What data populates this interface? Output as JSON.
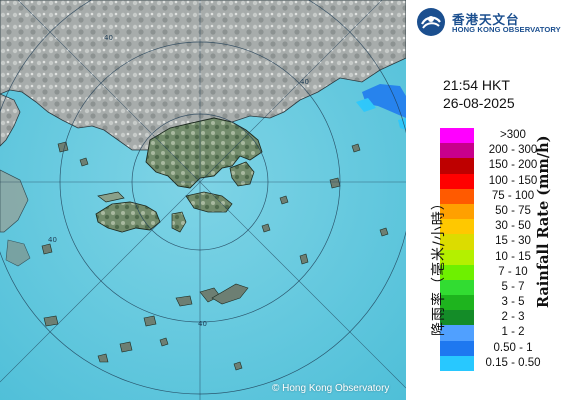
{
  "logo": {
    "name_chinese": "香港天文台",
    "name_english": "HONG KONG OBSERVATORY",
    "emblem_icon": "hko-emblem-icon"
  },
  "timestamp": {
    "time": "21:54 HKT",
    "date": "26-08-2025"
  },
  "copyright": "© Hong Kong Observatory",
  "range_ring_labels": [
    "40",
    "40",
    "40",
    "40"
  ],
  "legend": {
    "unit_english": "Rainfall Rate (mm/h)",
    "unit_chinese": "降雨率（毫米/小時）",
    "items": [
      {
        "label": ">300",
        "color": "#ff00ff"
      },
      {
        "label": "200 - 300",
        "color": "#c8008c"
      },
      {
        "label": "150 - 200",
        "color": "#be0000"
      },
      {
        "label": "100 - 150",
        "color": "#ff0000"
      },
      {
        "label": "75 - 100",
        "color": "#ff5a00"
      },
      {
        "label": "50 - 75",
        "color": "#ffa000"
      },
      {
        "label": "30 - 50",
        "color": "#ffc800"
      },
      {
        "label": "15 - 30",
        "color": "#dcdc00"
      },
      {
        "label": "10 - 15",
        "color": "#b4f000"
      },
      {
        "label": "7 - 10",
        "color": "#6ef000"
      },
      {
        "label": "5 - 7",
        "color": "#32dc32"
      },
      {
        "label": "3 - 5",
        "color": "#1eb41e"
      },
      {
        "label": "2 - 3",
        "color": "#148c28"
      },
      {
        "label": "1 - 2",
        "color": "#50a0ff"
      },
      {
        "label": "0.50 - 1",
        "color": "#1e78f0"
      },
      {
        "label": "0.15 - 0.50",
        "color": "#28c8ff"
      }
    ]
  },
  "colors": {
    "sea": "#5ec8dc",
    "land_mainland": "#9aa0a0",
    "land_island": "#6f8a6a",
    "rain_light": "#1e78f0",
    "rain_trace": "#28c8ff"
  }
}
